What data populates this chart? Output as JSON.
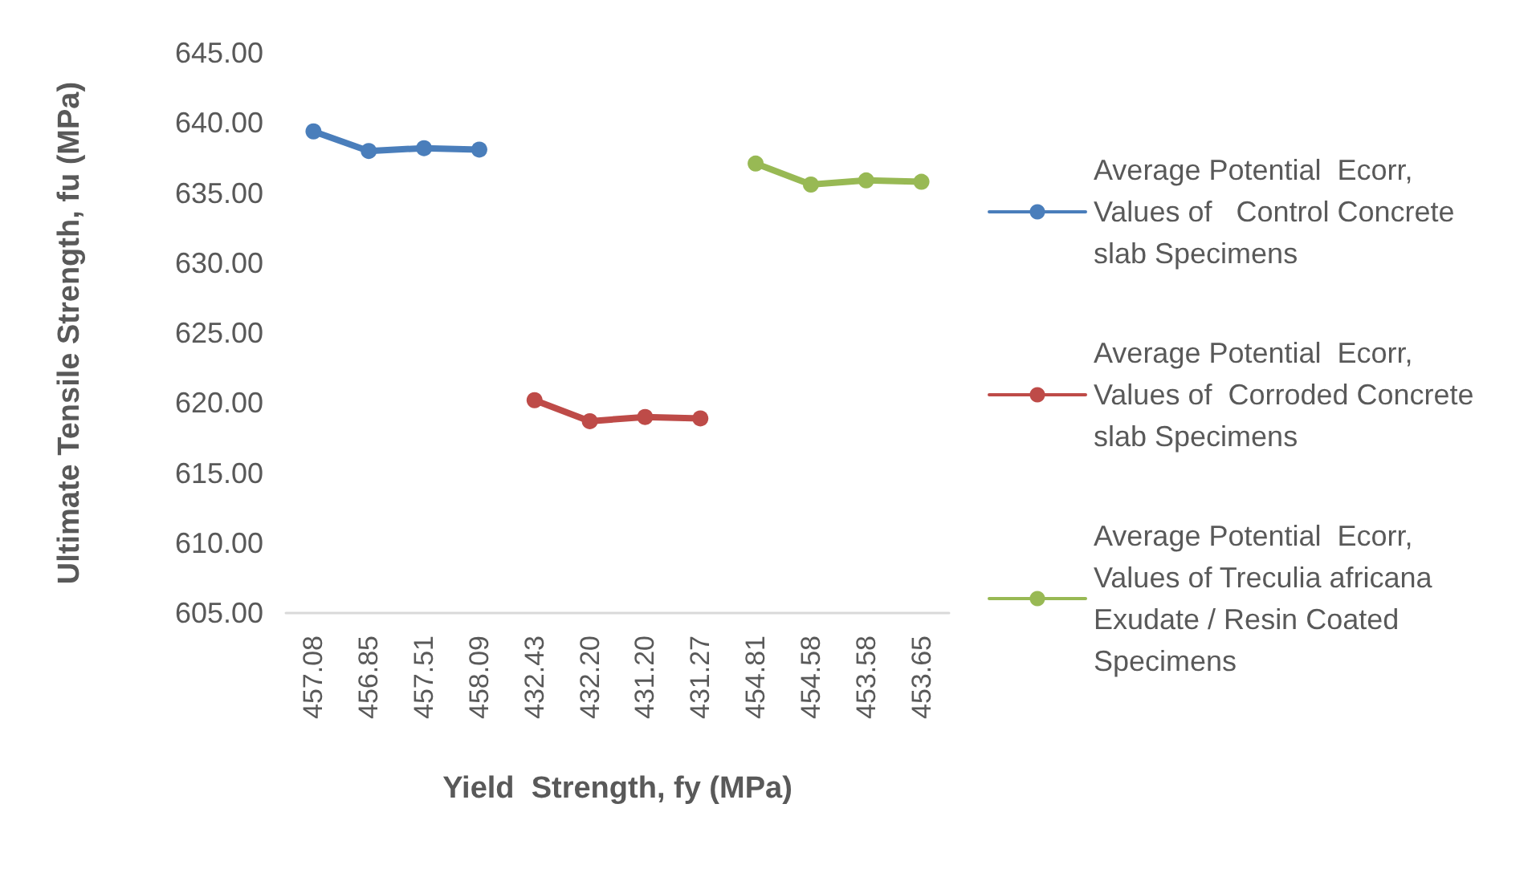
{
  "chart_data": {
    "type": "line",
    "xlabel": "Yield  Strength, fy (MPa)",
    "ylabel": "Ultimate Tensile Strength, fu (MPa)",
    "categories": [
      "457.08",
      "456.85",
      "457.51",
      "458.09",
      "432.43",
      "432.20",
      "431.20",
      "431.27",
      "454.81",
      "454.58",
      "453.58",
      "453.65"
    ],
    "series": [
      {
        "name": "Average Potential  Ecorr, Values of   Control Concrete slab Specimens",
        "color": "#4a7ebb",
        "values": [
          639.4,
          638.0,
          638.2,
          638.1,
          null,
          null,
          null,
          null,
          null,
          null,
          null,
          null
        ]
      },
      {
        "name": "Average Potential  Ecorr, Values of  Corroded Concrete slab Specimens",
        "color": "#be4b48",
        "values": [
          null,
          null,
          null,
          null,
          620.2,
          618.7,
          619.0,
          618.9,
          null,
          null,
          null,
          null
        ]
      },
      {
        "name": "Average Potential  Ecorr, Values of Treculia africana   Exudate / Resin Coated Specimens",
        "color": "#98b954",
        "values": [
          null,
          null,
          null,
          null,
          null,
          null,
          null,
          null,
          637.1,
          635.6,
          635.9,
          635.8
        ]
      }
    ],
    "ylim": [
      605,
      645
    ],
    "yticks": [
      {
        "value": 605,
        "label": "605.00"
      },
      {
        "value": 610,
        "label": "610.00"
      },
      {
        "value": 615,
        "label": "615.00"
      },
      {
        "value": 620,
        "label": "620.00"
      },
      {
        "value": 625,
        "label": "625.00"
      },
      {
        "value": 630,
        "label": "630.00"
      },
      {
        "value": 635,
        "label": "635.00"
      },
      {
        "value": 640,
        "label": "640.00"
      },
      {
        "value": 645,
        "label": "645.00"
      }
    ],
    "grid": false,
    "legend": "right",
    "marker": "circle",
    "line_style": "solid"
  }
}
